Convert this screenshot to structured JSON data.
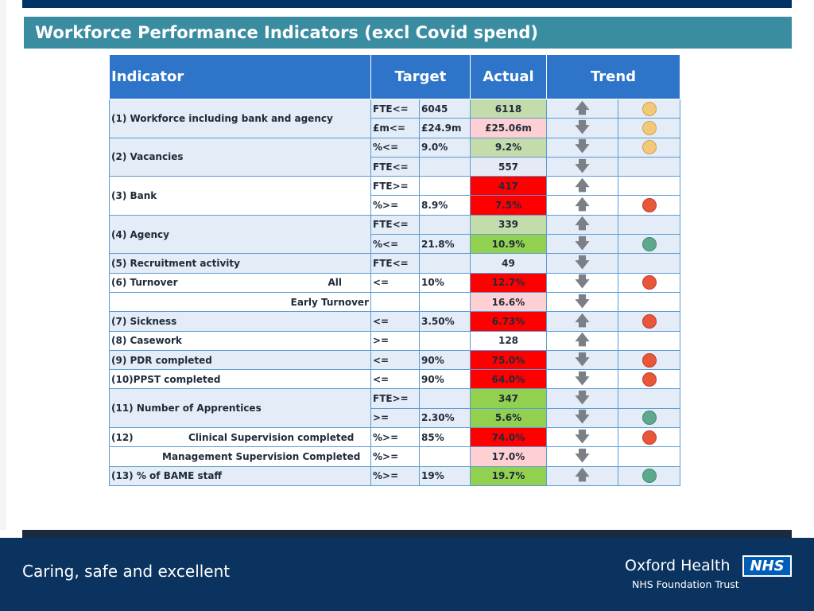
{
  "title": "Workforce Performance Indicators (excl Covid spend)",
  "colors": {
    "title_bar": "#3a8ca1",
    "header_bg": "#2e75c9",
    "row_light": "#e3ecf7",
    "green_light": "#c4dbab",
    "green": "#92d050",
    "red": "#ff0000",
    "pink": "#ffd0d3",
    "lavender": "#e7e9f4",
    "footer": "#0b3360"
  },
  "table": {
    "headers": {
      "indicator": "Indicator",
      "target": "Target",
      "actual": "Actual",
      "trend": "Trend"
    },
    "rows": [
      {
        "indicator": "(1) Workforce including bank and agency",
        "op": "FTE<=",
        "target": "6045",
        "actual": "6118",
        "arrow": "up-arrow",
        "rag": "amber"
      },
      {
        "op": "£m<=",
        "target": "£24.9m",
        "actual": "£25.06m",
        "arrow": "down-arrow",
        "rag": "amber"
      },
      {
        "indicator": "(2) Vacancies",
        "op": "%<=",
        "target": "9.0%",
        "actual": "9.2%",
        "arrow": "down-arrow",
        "rag": "amber"
      },
      {
        "op": "FTE<=",
        "target": "",
        "actual": "557",
        "arrow": "down-arrow",
        "rag": ""
      },
      {
        "indicator": "(3) Bank",
        "op": "FTE>=",
        "target": "",
        "actual": "417",
        "arrow": "up-arrow",
        "rag": ""
      },
      {
        "op": "%>=",
        "target": "8.9%",
        "actual": "7.5%",
        "arrow": "up-arrow",
        "rag": "red"
      },
      {
        "indicator": "(4) Agency",
        "op": "FTE<=",
        "target": "",
        "actual": "339",
        "arrow": "up-arrow",
        "rag": ""
      },
      {
        "op": "%<=",
        "target": "21.8%",
        "actual": "10.9%",
        "arrow": "down-arrow",
        "rag": "green"
      },
      {
        "indicator": "(5) Recruitment activity",
        "op": "FTE<=",
        "target": "",
        "actual": "49",
        "arrow": "down-arrow",
        "rag": ""
      },
      {
        "indicator": "(6) Turnover",
        "indicator_right": "All",
        "op": "<=",
        "target": "10%",
        "actual": "12.7%",
        "arrow": "down-arrow",
        "rag": "red"
      },
      {
        "indicator_right": "Early Turnover",
        "op": "",
        "target": "",
        "actual": "16.6%",
        "arrow": "down-arrow",
        "rag": ""
      },
      {
        "indicator": "(7) Sickness",
        "op": "<=",
        "target": "3.50%",
        "actual": "6.73%",
        "arrow": "up-arrow",
        "rag": "red"
      },
      {
        "indicator": "(8) Casework",
        "op": ">=",
        "target": "",
        "actual": "128",
        "arrow": "up-arrow",
        "rag": ""
      },
      {
        "indicator": "(9) PDR completed",
        "op": "<=",
        "target": "90%",
        "actual": "75.0%",
        "arrow": "down-arrow",
        "rag": "red"
      },
      {
        "indicator": "(10)PPST completed",
        "op": "<=",
        "target": "90%",
        "actual": "64.0%",
        "arrow": "down-arrow",
        "rag": "red"
      },
      {
        "indicator": "(11) Number of Apprentices",
        "op": "FTE>=",
        "target": "",
        "actual": "347",
        "arrow": "down-arrow",
        "rag": ""
      },
      {
        "op": ">=",
        "target": "2.30%",
        "actual": "5.6%",
        "arrow": "down-arrow",
        "rag": "green"
      },
      {
        "indicator": "(12)",
        "indicator_mid": "Clinical Supervision completed",
        "op": "%>=",
        "target": "85%",
        "actual": "74.0%",
        "arrow": "down-arrow",
        "rag": "red"
      },
      {
        "indicator_mid": "Management Supervision Completed",
        "op": "%>=",
        "target": "",
        "actual": "17.0%",
        "arrow": "down-arrow",
        "rag": ""
      },
      {
        "indicator": "(13) % of BAME staff",
        "op": "%>=",
        "target": "19%",
        "actual": "19.7%",
        "arrow": "up-arrow",
        "rag": "green"
      }
    ]
  },
  "footer": {
    "tagline": "Caring, safe and excellent",
    "org_name": "Oxford Health",
    "org_sub": "NHS Foundation Trust",
    "nhs_logo": "NHS"
  }
}
